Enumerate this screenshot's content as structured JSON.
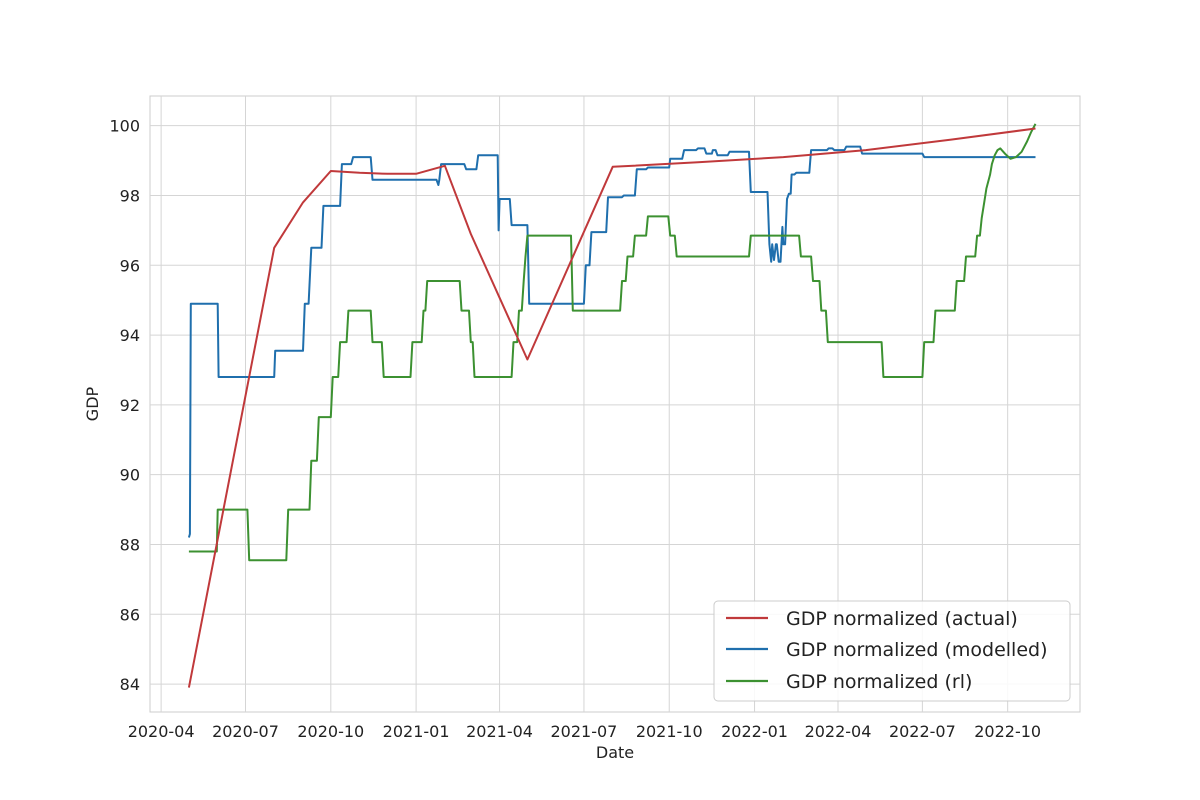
{
  "chart_data": {
    "type": "line",
    "title": "",
    "xlabel": "Date",
    "ylabel": "GDP",
    "xlim": [
      "2020-03-20",
      "2022-12-18"
    ],
    "ylim": [
      83.2,
      100.85
    ],
    "x_ticks": [
      "2020-04-01",
      "2020-07-01",
      "2020-10-01",
      "2021-01-01",
      "2021-04-01",
      "2021-07-01",
      "2021-10-01",
      "2022-01-01",
      "2022-04-01",
      "2022-07-01",
      "2022-10-01"
    ],
    "x_tick_labels": [
      "2020-04",
      "2020-07",
      "2020-10",
      "2021-01",
      "2021-04",
      "2021-07",
      "2021-10",
      "2022-01",
      "2022-04",
      "2022-07",
      "2022-10"
    ],
    "y_ticks": [
      84,
      86,
      88,
      90,
      92,
      94,
      96,
      98,
      100
    ],
    "y_tick_labels": [
      "84",
      "86",
      "88",
      "90",
      "92",
      "94",
      "96",
      "98",
      "100"
    ],
    "grid": true,
    "legend_position": "lower-right",
    "series": [
      {
        "name": "GDP normalized (actual)",
        "color": "#c0393b",
        "x": [
          "2020-05-01",
          "2020-08-01",
          "2020-09-01",
          "2020-10-01",
          "2020-11-01",
          "2020-12-01",
          "2021-01-01",
          "2021-02-01",
          "2021-03-01",
          "2021-05-01",
          "2021-08-01",
          "2021-11-01",
          "2022-02-01",
          "2022-05-01",
          "2022-08-01",
          "2022-10-31"
        ],
        "y": [
          83.9,
          96.5,
          97.8,
          98.7,
          98.65,
          98.62,
          98.62,
          98.85,
          96.9,
          93.3,
          98.82,
          98.95,
          99.1,
          99.3,
          99.6,
          99.92
        ]
      },
      {
        "name": "GDP normalized (modelled)",
        "color": "#1f6fad",
        "x": [
          "2020-05-01",
          "2020-05-02",
          "2020-05-03",
          "2020-06-01",
          "2020-06-02",
          "2020-08-01",
          "2020-08-02",
          "2020-09-01",
          "2020-09-03",
          "2020-09-07",
          "2020-09-10",
          "2020-09-21",
          "2020-09-23",
          "2020-10-11",
          "2020-10-13",
          "2020-10-23",
          "2020-10-25",
          "2020-11-13",
          "2020-11-15",
          "2021-01-23",
          "2021-01-25",
          "2021-01-26",
          "2021-01-28",
          "2021-02-22",
          "2021-02-24",
          "2021-03-07",
          "2021-03-09",
          "2021-03-30",
          "2021-03-31",
          "2021-04-01",
          "2021-04-03",
          "2021-04-12",
          "2021-04-14",
          "2021-05-01",
          "2021-05-03",
          "2021-07-01",
          "2021-07-03",
          "2021-07-07",
          "2021-07-09",
          "2021-07-25",
          "2021-07-27",
          "2021-08-11",
          "2021-08-13",
          "2021-08-25",
          "2021-08-27",
          "2021-09-06",
          "2021-09-08",
          "2021-10-01",
          "2021-10-02",
          "2021-10-15",
          "2021-10-17",
          "2021-10-30",
          "2021-11-01",
          "2021-11-08",
          "2021-11-10",
          "2021-11-16",
          "2021-11-17",
          "2021-11-20",
          "2021-11-22",
          "2021-12-03",
          "2021-12-05",
          "2021-12-26",
          "2021-12-28",
          "2022-01-15",
          "2022-01-17",
          "2022-01-19",
          "2022-01-20",
          "2022-01-22",
          "2022-01-24",
          "2022-01-25",
          "2022-01-27",
          "2022-01-29",
          "2022-01-31",
          "2022-02-01",
          "2022-02-03",
          "2022-02-05",
          "2022-02-07",
          "2022-02-09",
          "2022-02-10",
          "2022-02-13",
          "2022-02-15",
          "2022-03-01",
          "2022-03-03",
          "2022-03-20",
          "2022-03-22",
          "2022-03-26",
          "2022-03-28",
          "2022-04-08",
          "2022-04-10",
          "2022-04-25",
          "2022-04-27",
          "2022-07-01",
          "2022-07-03",
          "2022-10-31"
        ],
        "y": [
          88.2,
          88.3,
          94.9,
          94.9,
          92.8,
          92.8,
          93.55,
          93.55,
          94.9,
          94.9,
          96.5,
          96.5,
          97.7,
          97.7,
          98.9,
          98.9,
          99.1,
          99.1,
          98.45,
          98.45,
          98.3,
          98.45,
          98.9,
          98.9,
          98.75,
          98.75,
          99.15,
          99.15,
          97.0,
          97.9,
          97.9,
          97.9,
          97.15,
          97.15,
          94.9,
          94.9,
          96.0,
          96.0,
          96.95,
          96.95,
          97.95,
          97.95,
          98.0,
          98.0,
          98.75,
          98.75,
          98.8,
          98.8,
          99.05,
          99.05,
          99.3,
          99.3,
          99.35,
          99.35,
          99.2,
          99.2,
          99.3,
          99.3,
          99.15,
          99.15,
          99.25,
          99.25,
          98.1,
          98.1,
          96.6,
          96.1,
          96.6,
          96.15,
          96.6,
          96.6,
          96.1,
          96.1,
          97.1,
          96.6,
          96.6,
          97.9,
          98.05,
          98.05,
          98.6,
          98.6,
          98.65,
          98.65,
          99.3,
          99.3,
          99.35,
          99.35,
          99.3,
          99.3,
          99.4,
          99.4,
          99.2,
          99.2,
          99.1,
          99.1
        ]
      },
      {
        "name": "GDP normalized (rl)",
        "color": "#3c9131",
        "x": [
          "2020-05-01",
          "2020-05-31",
          "2020-06-01",
          "2020-07-03",
          "2020-07-05",
          "2020-08-14",
          "2020-08-16",
          "2020-09-08",
          "2020-09-10",
          "2020-09-16",
          "2020-09-18",
          "2020-10-01",
          "2020-10-03",
          "2020-10-09",
          "2020-10-11",
          "2020-10-18",
          "2020-10-20",
          "2020-11-13",
          "2020-11-15",
          "2020-11-25",
          "2020-11-27",
          "2020-12-26",
          "2020-12-28",
          "2021-01-07",
          "2021-01-09",
          "2021-01-11",
          "2021-01-13",
          "2021-02-17",
          "2021-02-19",
          "2021-02-27",
          "2021-02-29",
          "2021-03-03",
          "2021-03-05",
          "2021-04-14",
          "2021-04-16",
          "2021-04-20",
          "2021-04-22",
          "2021-04-25",
          "2021-04-27",
          "2021-04-29",
          "2021-05-01",
          "2021-05-06",
          "2021-05-08",
          "2021-06-17",
          "2021-06-19",
          "2021-08-09",
          "2021-08-11",
          "2021-08-15",
          "2021-08-17",
          "2021-08-23",
          "2021-08-25",
          "2021-09-06",
          "2021-09-08",
          "2021-09-30",
          "2021-10-02",
          "2021-10-07",
          "2021-10-09",
          "2021-12-26",
          "2021-12-28",
          "2022-02-18",
          "2022-02-20",
          "2022-03-03",
          "2022-03-05",
          "2022-03-12",
          "2022-03-14",
          "2022-03-19",
          "2022-03-21",
          "2022-05-18",
          "2022-05-20",
          "2022-07-01",
          "2022-07-03",
          "2022-07-13",
          "2022-07-15",
          "2022-08-05",
          "2022-08-07",
          "2022-08-15",
          "2022-08-17",
          "2022-08-27",
          "2022-08-29",
          "2022-09-01",
          "2022-09-03",
          "2022-09-06",
          "2022-09-08",
          "2022-09-12",
          "2022-09-14",
          "2022-09-17",
          "2022-09-20",
          "2022-09-23",
          "2022-09-28",
          "2022-10-04",
          "2022-10-10",
          "2022-10-16",
          "2022-10-22",
          "2022-10-26",
          "2022-10-29",
          "2022-10-31"
        ],
        "y": [
          87.8,
          87.8,
          89.0,
          89.0,
          87.55,
          87.55,
          89.0,
          89.0,
          90.4,
          90.4,
          91.65,
          91.65,
          92.8,
          92.8,
          93.8,
          93.8,
          94.7,
          94.7,
          93.8,
          93.8,
          92.8,
          92.8,
          93.8,
          93.8,
          94.7,
          94.7,
          95.55,
          95.55,
          94.7,
          94.7,
          93.8,
          93.8,
          92.8,
          92.8,
          93.8,
          93.8,
          94.7,
          94.7,
          95.55,
          96.25,
          96.85,
          96.85,
          96.85,
          96.85,
          94.7,
          94.7,
          95.55,
          95.55,
          96.25,
          96.25,
          96.85,
          96.85,
          97.4,
          97.4,
          96.85,
          96.85,
          96.25,
          96.25,
          96.85,
          96.85,
          96.25,
          96.25,
          95.55,
          95.55,
          94.7,
          94.7,
          93.8,
          93.8,
          92.8,
          92.8,
          93.8,
          93.8,
          94.7,
          94.7,
          95.55,
          95.55,
          96.25,
          96.25,
          96.85,
          96.85,
          97.35,
          97.85,
          98.2,
          98.6,
          98.9,
          99.15,
          99.3,
          99.35,
          99.2,
          99.05,
          99.1,
          99.25,
          99.55,
          99.8,
          99.95,
          100.05
        ]
      }
    ]
  }
}
